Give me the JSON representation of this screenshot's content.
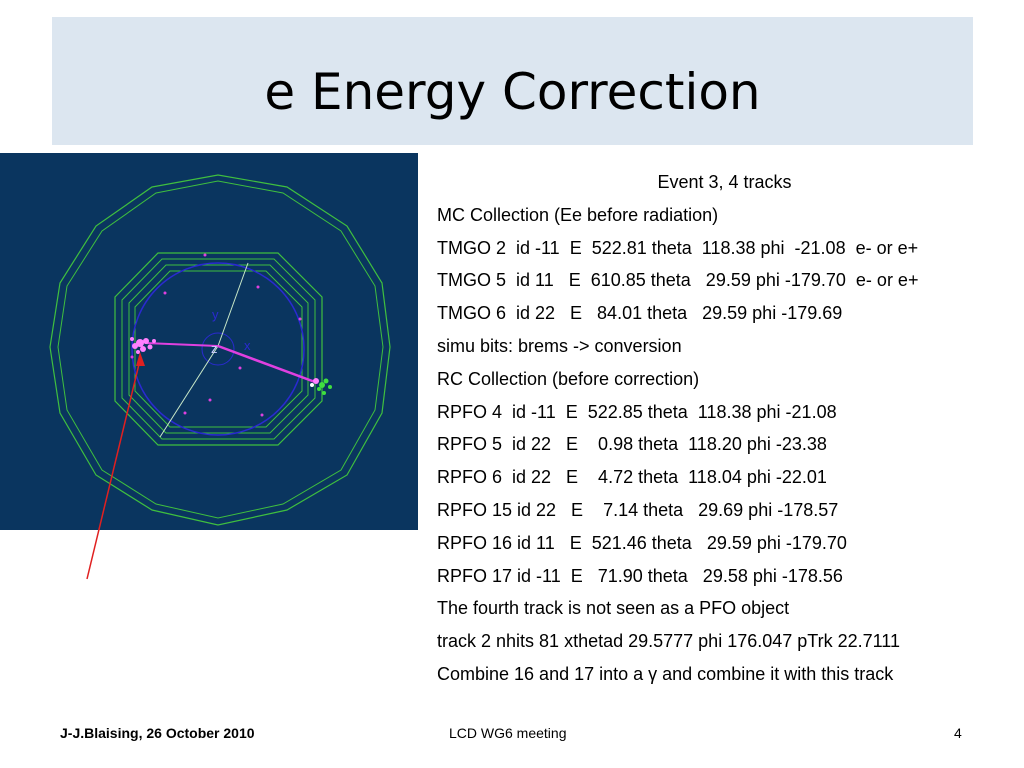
{
  "slide": {
    "title": "e Energy Correction",
    "event_display": {
      "axis_y": "y",
      "axis_z": "z",
      "axis_x": "x"
    },
    "lines": [
      "Event 3, 4 tracks",
      "MC Collection (Ee before radiation)",
      "TMGO 2  id -11  E  522.81 theta  118.38 phi  -21.08  e- or e+",
      "TMGO 5  id 11   E  610.85 theta   29.59 phi -179.70  e- or e+",
      "TMGO 6  id 22   E   84.01 theta   29.59 phi -179.69",
      "simu bits: brems -> conversion",
      "RC Collection (before correction)",
      "RPFO 4  id -11  E  522.85 theta  118.38 phi -21.08",
      "RPFO 5  id 22   E    0.98 theta  118.20 phi -23.38",
      "RPFO 6  id 22   E    4.72 theta  118.04 phi -22.01",
      "RPFO 15 id 22   E    7.14 theta   29.69 phi -178.57",
      "RPFO 16 id 11   E  521.46 theta   29.59 phi -179.70",
      "RPFO 17 id -11  E   71.90 theta   29.58 phi -178.56",
      "The fourth track is not seen as a PFO object",
      "track 2 nhits 81 xthetad 29.5777 phi 176.047 pTrk 22.7111",
      "Combine 16 and 17 into a γ and combine it with this track"
    ],
    "footer": {
      "author_date": "J-J.Blaising, 26 October 2010",
      "meeting": "LCD WG6 meeting",
      "page_number": "4"
    },
    "colors": {
      "title_background": "#dce6f0",
      "display_background": "#0a355f",
      "detector_green": "#3fbf3f",
      "inner_circle": "#2a2ad0",
      "track_magenta": "#e040e0",
      "annotation_arrow": "#e02020"
    }
  }
}
